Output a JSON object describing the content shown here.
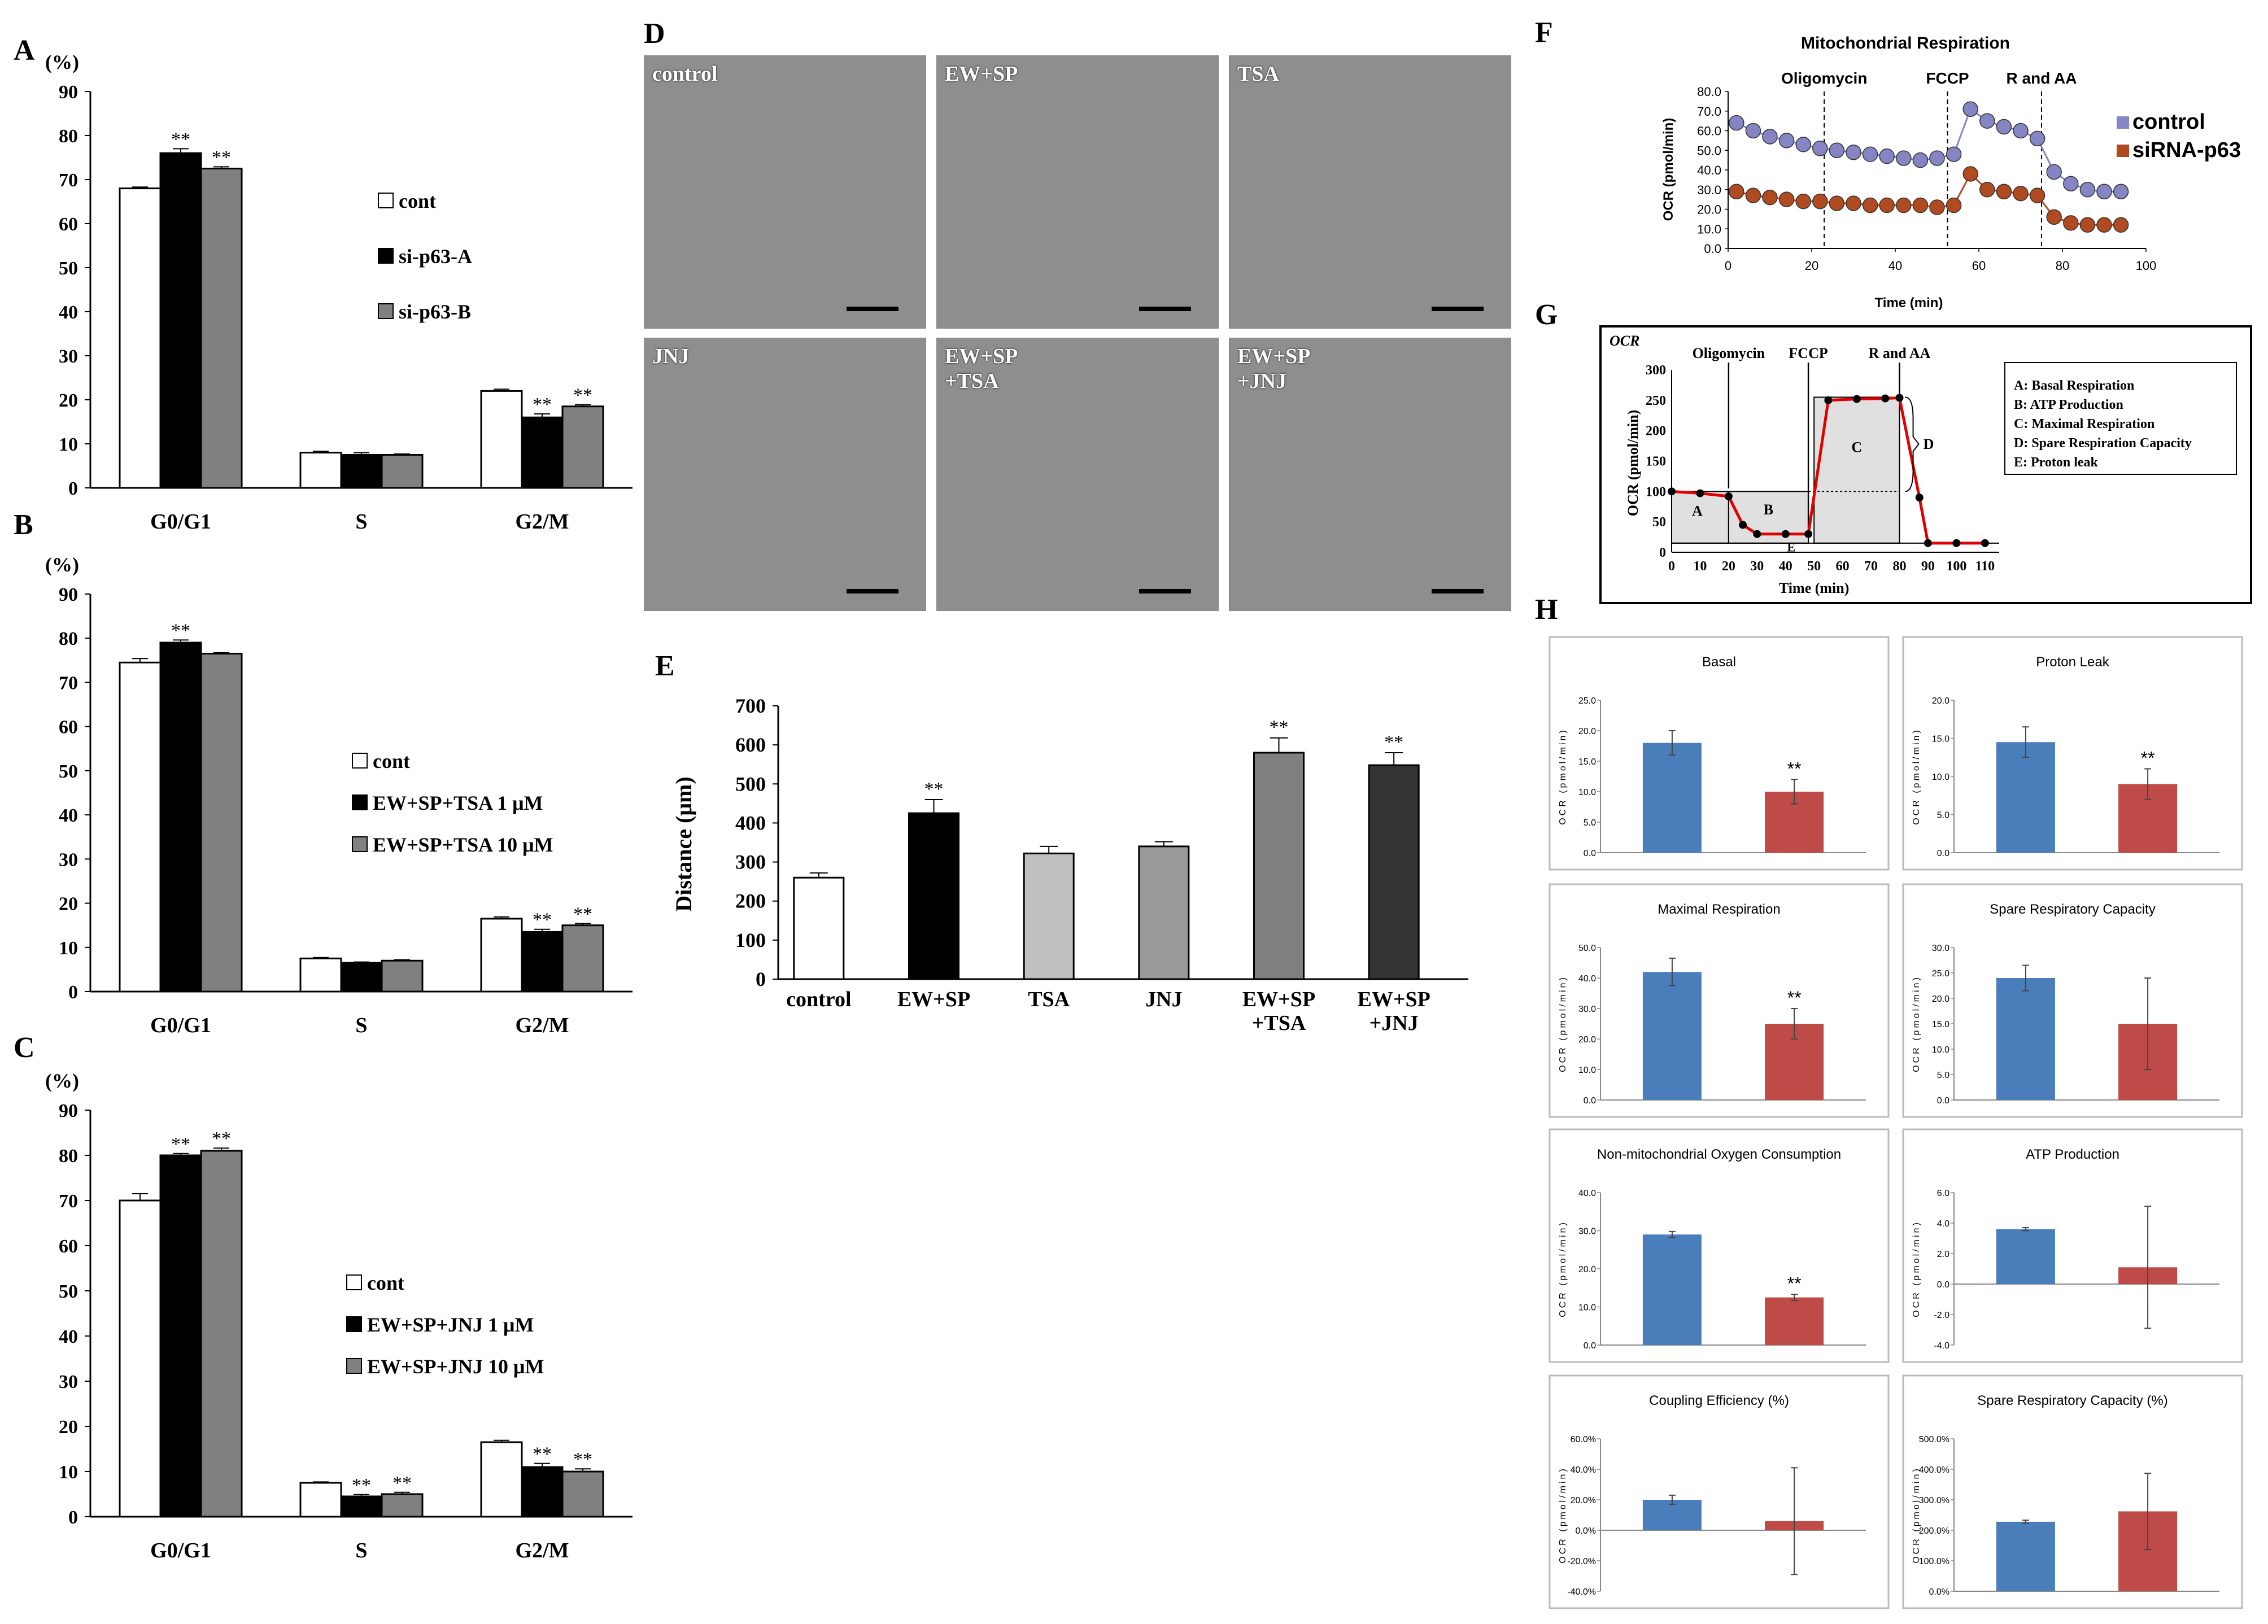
{
  "panel_letters": {
    "A": "A",
    "B": "B",
    "C": "C",
    "D": "D",
    "E": "E",
    "F": "F",
    "G": "G",
    "H": "H"
  },
  "significance_mark": "**",
  "chart_data": [
    {
      "id": "A",
      "type": "bar",
      "ylabel": "(%)",
      "categories": [
        "G0/G1",
        "S",
        "G2/M"
      ],
      "ylim": [
        0,
        90
      ],
      "yticks": [
        0,
        10,
        20,
        30,
        40,
        50,
        60,
        70,
        80,
        90
      ],
      "legend_location": "right",
      "series": [
        {
          "name": "cont",
          "color": "#ffffff",
          "values": [
            68,
            8,
            22
          ],
          "errors": [
            0.3,
            0.3,
            0.4
          ],
          "sig": [
            false,
            false,
            false
          ]
        },
        {
          "name": "si-p63-A",
          "color": "#000000",
          "values": [
            76,
            7.5,
            16
          ],
          "errors": [
            1.0,
            0.5,
            0.8
          ],
          "sig": [
            true,
            false,
            true
          ]
        },
        {
          "name": "si-p63-B",
          "color": "#808080",
          "values": [
            72.5,
            7.5,
            18.5
          ],
          "errors": [
            0.4,
            0.2,
            0.4
          ],
          "sig": [
            true,
            false,
            true
          ]
        }
      ]
    },
    {
      "id": "B",
      "type": "bar",
      "ylabel": "(%)",
      "categories": [
        "G0/G1",
        "S",
        "G2/M"
      ],
      "ylim": [
        0,
        90
      ],
      "yticks": [
        0,
        10,
        20,
        30,
        40,
        50,
        60,
        70,
        80,
        90
      ],
      "legend_location": "right",
      "series": [
        {
          "name": "cont",
          "color": "#ffffff",
          "values": [
            74.5,
            7.5,
            16.5
          ],
          "errors": [
            0.9,
            0.2,
            0.4
          ],
          "sig": [
            false,
            false,
            false
          ]
        },
        {
          "name": "EW+SP+TSA 1 μM",
          "color": "#000000",
          "values": [
            79,
            6.5,
            13.5
          ],
          "errors": [
            0.6,
            0.2,
            0.6
          ],
          "sig": [
            true,
            false,
            true
          ]
        },
        {
          "name": "EW+SP+TSA 10 μM",
          "color": "#808080",
          "values": [
            76.5,
            7,
            15
          ],
          "errors": [
            0.2,
            0.2,
            0.4
          ],
          "sig": [
            false,
            false,
            true
          ]
        }
      ]
    },
    {
      "id": "C",
      "type": "bar",
      "ylabel": "(%)",
      "categories": [
        "G0/G1",
        "S",
        "G2/M"
      ],
      "ylim": [
        0,
        90
      ],
      "yticks": [
        0,
        10,
        20,
        30,
        40,
        50,
        60,
        70,
        80,
        90
      ],
      "legend_location": "right",
      "series": [
        {
          "name": "cont",
          "color": "#ffffff",
          "values": [
            70,
            7.5,
            16.5
          ],
          "errors": [
            1.5,
            0.2,
            0.4
          ],
          "sig": [
            false,
            false,
            false
          ]
        },
        {
          "name": "EW+SP+JNJ 1 μM",
          "color": "#000000",
          "values": [
            80,
            4.5,
            11
          ],
          "errors": [
            0.4,
            0.4,
            0.8
          ],
          "sig": [
            true,
            true,
            true
          ]
        },
        {
          "name": "EW+SP+JNJ 10 μM",
          "color": "#808080",
          "values": [
            81,
            5,
            10
          ],
          "errors": [
            0.6,
            0.4,
            0.6
          ],
          "sig": [
            true,
            true,
            true
          ]
        }
      ]
    },
    {
      "id": "E",
      "type": "bar",
      "ylabel": "Distance (μm)",
      "ylim": [
        0,
        700
      ],
      "yticks": [
        0,
        100,
        200,
        300,
        400,
        500,
        600,
        700
      ],
      "categories": [
        "control",
        "EW+SP",
        "TSA",
        "JNJ",
        "EW+SP\n+TSA",
        "EW+SP\n+JNJ"
      ],
      "colors": [
        "#ffffff",
        "#000000",
        "#c0c0c0",
        "#999999",
        "#7f7f7f",
        "#333333"
      ],
      "values": [
        260,
        425,
        322,
        340,
        580,
        548
      ],
      "errors": [
        12,
        35,
        18,
        12,
        38,
        32
      ],
      "sig": [
        false,
        true,
        false,
        false,
        true,
        true
      ]
    },
    {
      "id": "F",
      "type": "line",
      "title": "Mitochondrial Respiration",
      "xlabel": "Time (min)",
      "ylabel": "OCR (pmol/min)",
      "xlim": [
        0,
        100
      ],
      "ylim": [
        0,
        80
      ],
      "xticks": [
        0,
        20,
        40,
        60,
        80,
        100
      ],
      "yticks": [
        0,
        10,
        20,
        30,
        40,
        50,
        60,
        70,
        80
      ],
      "ytick_labels": [
        "0.0",
        "10.0",
        "20.0",
        "30.0",
        "40.0",
        "50.0",
        "60.0",
        "70.0",
        "80.0"
      ],
      "injections": [
        {
          "label": "Oligomycin",
          "x": 23
        },
        {
          "label": "FCCP",
          "x": 52.5
        },
        {
          "label": "R and AA",
          "x": 75
        }
      ],
      "legend_location": "right",
      "series": [
        {
          "name": "control",
          "color": "#8585c4",
          "x": [
            2,
            6,
            10,
            14,
            18,
            22,
            26,
            30,
            34,
            38,
            42,
            46,
            50,
            54,
            58,
            62,
            66,
            70,
            74,
            78,
            82,
            86,
            90,
            94
          ],
          "y": [
            64,
            60,
            57,
            55,
            53,
            51,
            50,
            49,
            48,
            47,
            46,
            45,
            46,
            48,
            71,
            65,
            62,
            60,
            56,
            39,
            33,
            30,
            29,
            29
          ]
        },
        {
          "name": "siRNA-p63",
          "color": "#b04a20",
          "x": [
            2,
            6,
            10,
            14,
            18,
            22,
            26,
            30,
            34,
            38,
            42,
            46,
            50,
            54,
            58,
            62,
            66,
            70,
            74,
            78,
            82,
            86,
            90,
            94
          ],
          "y": [
            29,
            27,
            26,
            25,
            24,
            24,
            23,
            23,
            22,
            22,
            22,
            22,
            21,
            22,
            38,
            30,
            29,
            28,
            27,
            16,
            13,
            12,
            12,
            12
          ]
        }
      ]
    },
    {
      "id": "G",
      "type": "line",
      "ylabel": "OCR (pmol/min)",
      "xlabel": "Time (min)",
      "subtitle": "OCR",
      "xlim": [
        0,
        115
      ],
      "ylim": [
        0,
        300
      ],
      "xticks": [
        0,
        10,
        20,
        30,
        40,
        50,
        60,
        70,
        80,
        90,
        100,
        110
      ],
      "yticks": [
        0,
        50,
        100,
        150,
        200,
        250,
        300
      ],
      "injections": [
        {
          "label": "Oligomycin",
          "x": 20
        },
        {
          "label": "FCCP",
          "x": 48
        },
        {
          "label": "R and AA",
          "x": 80
        }
      ],
      "x": [
        0,
        10,
        20,
        25,
        30,
        40,
        48,
        55,
        65,
        75,
        80,
        87,
        90,
        100,
        110
      ],
      "y": [
        100,
        97,
        92,
        45,
        30,
        30,
        30,
        250,
        252,
        253,
        254,
        90,
        15,
        15,
        15
      ],
      "box_letters": [
        "A",
        "B",
        "C",
        "D",
        "E"
      ],
      "legend": [
        "A: Basal Respiration",
        "B: ATP Production",
        "C: Maximal Respiration",
        "D: Spare Respiration Capacity",
        "E: Proton leak"
      ]
    },
    {
      "id": "H",
      "type": "bar",
      "ylabel": "OCR (pmol/min)",
      "colors": [
        "#4a7ebb",
        "#be4b48"
      ],
      "subplots": [
        {
          "title": "Basal",
          "ylim": [
            0,
            25
          ],
          "ticks": [
            "0.0",
            "5.0",
            "10.0",
            "15.0",
            "20.0",
            "25.0"
          ],
          "values": [
            18,
            10
          ],
          "errors": [
            2.0,
            2.0
          ],
          "sig": [
            false,
            true
          ]
        },
        {
          "title": "Proton Leak",
          "ylim": [
            0,
            20
          ],
          "ticks": [
            "0.0",
            "5.0",
            "10.0",
            "15.0",
            "20.0"
          ],
          "values": [
            14.5,
            9
          ],
          "errors": [
            2.0,
            2.0
          ],
          "sig": [
            false,
            true
          ]
        },
        {
          "title": "Maximal Respiration",
          "ylim": [
            0,
            50
          ],
          "ticks": [
            "0.0",
            "10.0",
            "20.0",
            "30.0",
            "40.0",
            "50.0"
          ],
          "values": [
            42,
            25
          ],
          "errors": [
            4.5,
            5.0
          ],
          "sig": [
            false,
            true
          ]
        },
        {
          "title": "Spare Respiratory Capacity",
          "ylim": [
            0,
            30
          ],
          "ticks": [
            "0.0",
            "5.0",
            "10.0",
            "15.0",
            "20.0",
            "25.0",
            "30.0"
          ],
          "values": [
            24,
            15
          ],
          "errors": [
            2.5,
            9.0
          ],
          "sig": [
            false,
            false
          ]
        },
        {
          "title": "Non-mitochondrial Oxygen Consumption",
          "ylim": [
            0,
            40
          ],
          "ticks": [
            "0.0",
            "10.0",
            "20.0",
            "30.0",
            "40.0"
          ],
          "values": [
            29,
            12.5
          ],
          "errors": [
            0.8,
            0.8
          ],
          "sig": [
            false,
            true
          ]
        },
        {
          "title": "ATP Production",
          "ylim": [
            -4,
            6
          ],
          "ticks": [
            "-4.0",
            "-2.0",
            "0.0",
            "2.0",
            "4.0",
            "6.0"
          ],
          "values": [
            3.6,
            1.1
          ],
          "errors": [
            0.1,
            4.0
          ],
          "sig": [
            false,
            false
          ]
        },
        {
          "title": "Coupling Efficiency (%)",
          "ylim": [
            -40,
            60
          ],
          "ticks": [
            "-40.0%",
            "-20.0%",
            "0.0%",
            "20.0%",
            "40.0%",
            "60.0%"
          ],
          "values": [
            20,
            6
          ],
          "errors": [
            3,
            35
          ],
          "sig": [
            false,
            false
          ]
        },
        {
          "title": "Spare Respiratory Capacity (%)",
          "ylim": [
            0,
            500
          ],
          "ticks": [
            "0.0%",
            "100.0%",
            "200.0%",
            "300.0%",
            "400.0%",
            "500.0%"
          ],
          "values": [
            228,
            262
          ],
          "errors": [
            5,
            125
          ],
          "sig": [
            false,
            false
          ]
        }
      ]
    }
  ],
  "micrographs": [
    {
      "label": "control"
    },
    {
      "label": "EW+SP"
    },
    {
      "label": "TSA"
    },
    {
      "label": "JNJ"
    },
    {
      "label": "EW+SP\n+TSA"
    },
    {
      "label": "EW+SP\n+JNJ"
    }
  ]
}
